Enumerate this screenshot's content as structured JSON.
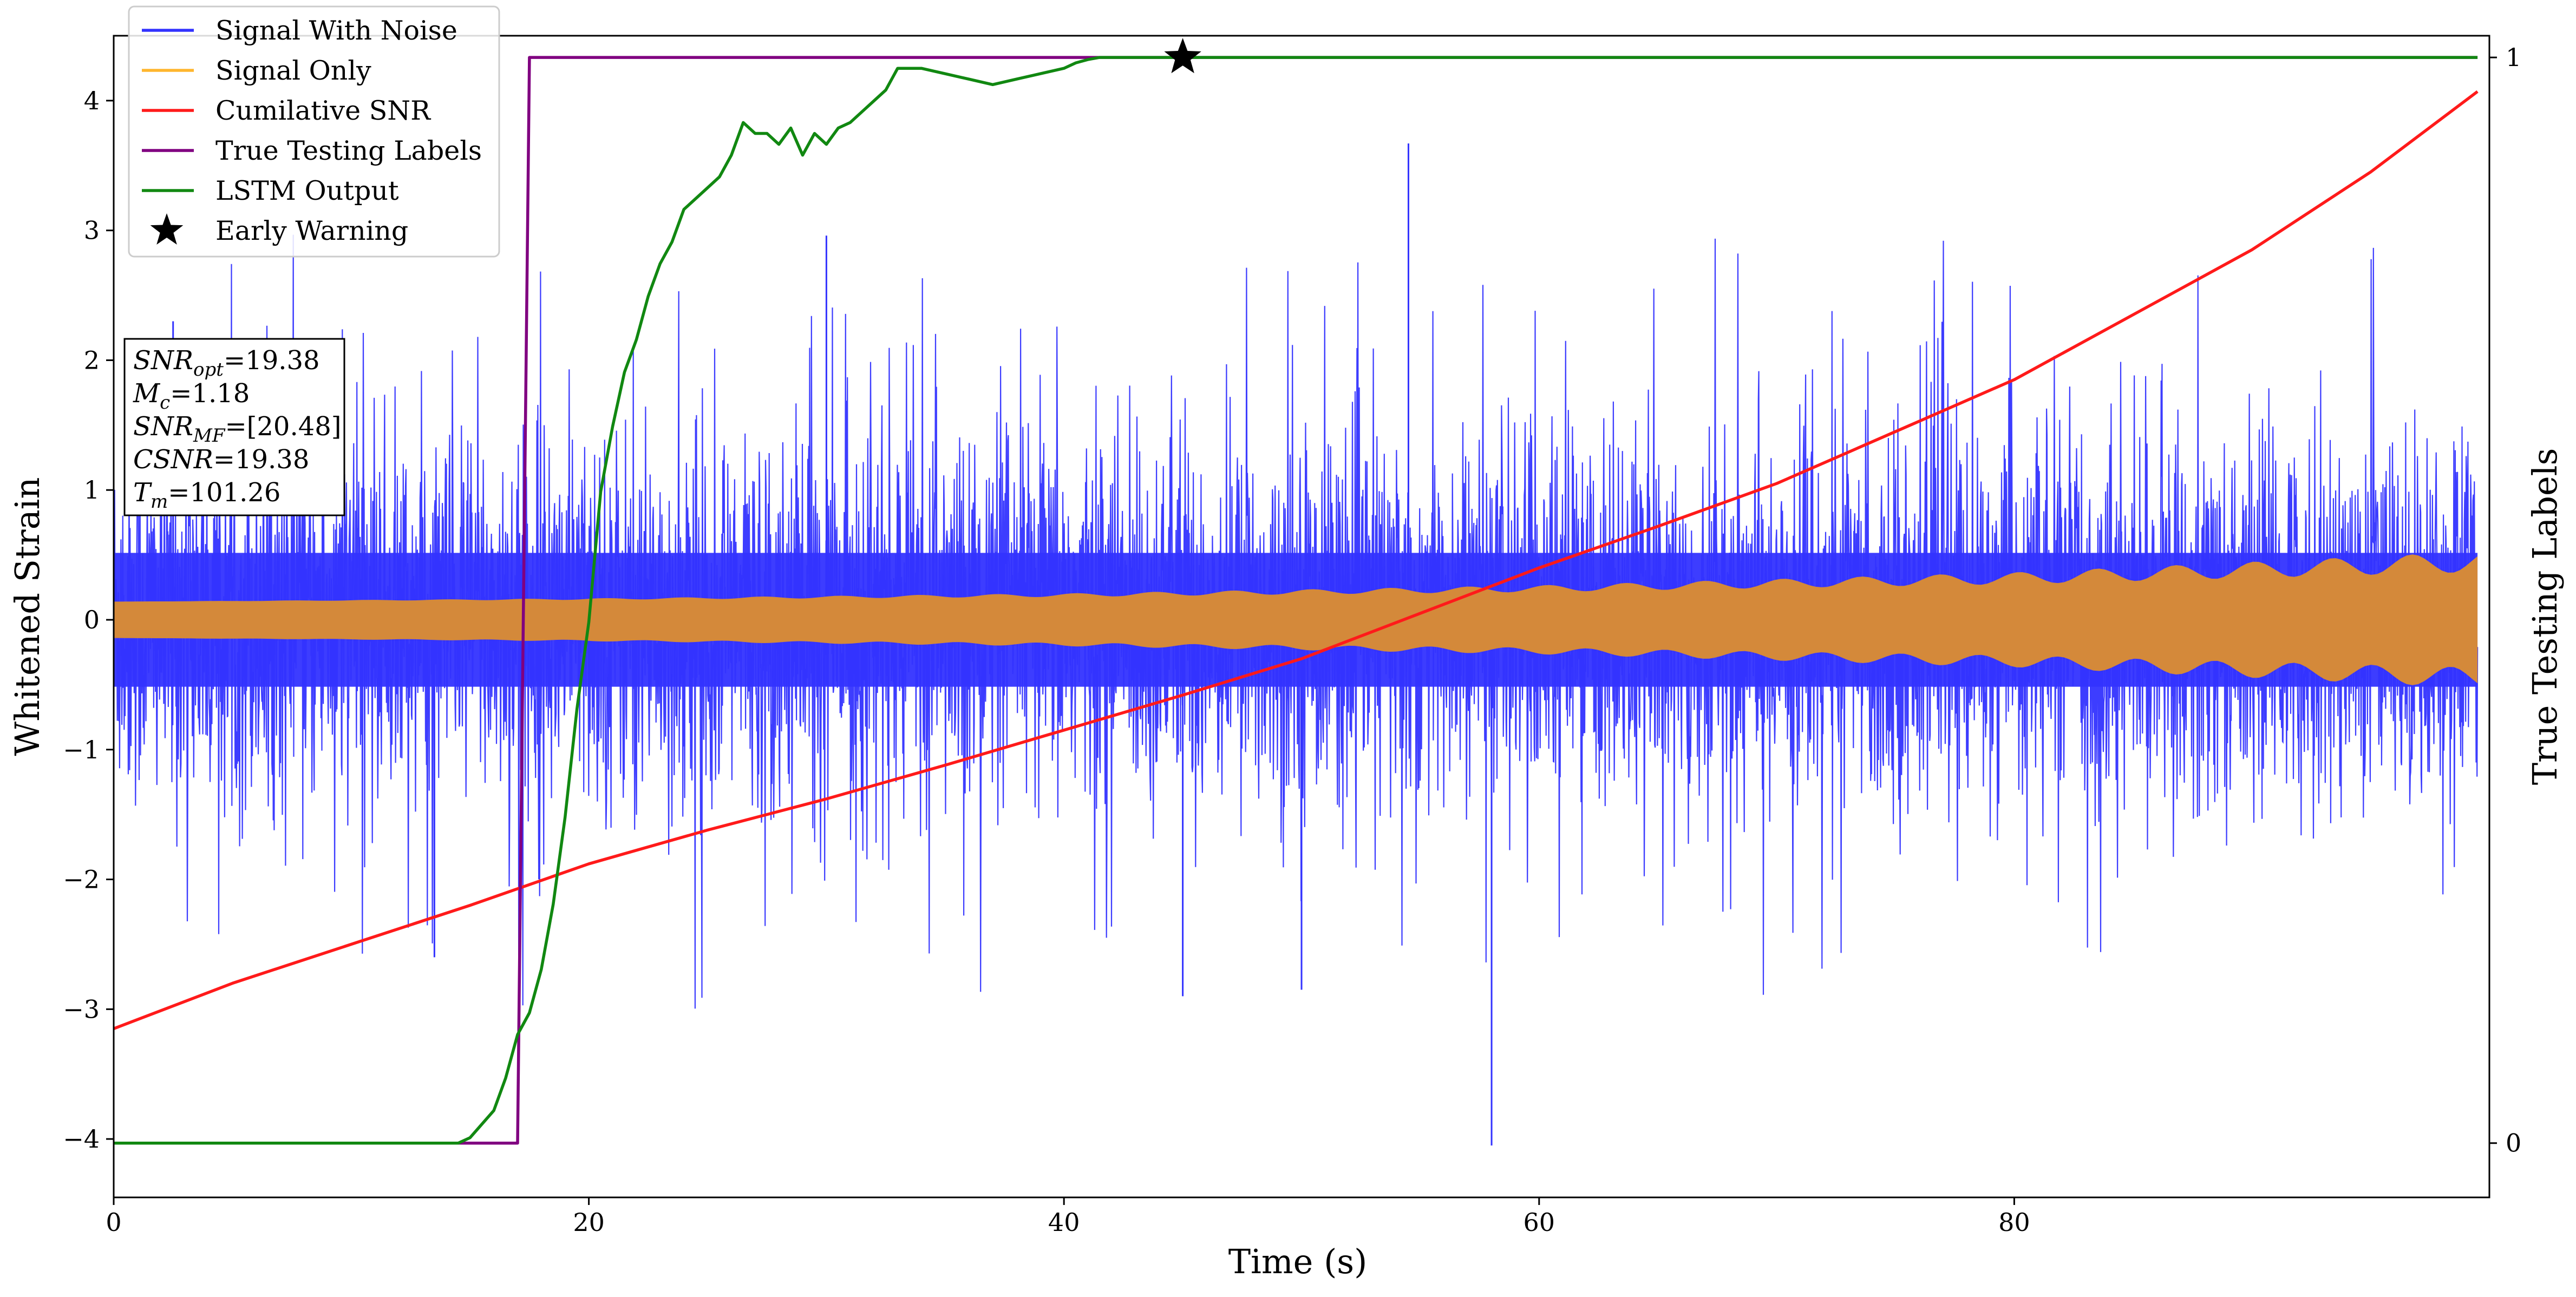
{
  "chart_data": {
    "type": "line",
    "xlabel": "Time (s)",
    "ylabel": "Whitened Strain",
    "y2label": "True Testing Labels",
    "xlim": [
      0,
      100
    ],
    "ylim": [
      -4.45,
      4.5
    ],
    "y2lim": [
      -0.05,
      1.02
    ],
    "xticks": [
      0,
      20,
      40,
      60,
      80
    ],
    "xtick_labels": [
      "0",
      "20",
      "40",
      "60",
      "80"
    ],
    "yticks": [
      4,
      3,
      2,
      1,
      0,
      -1,
      -2,
      -3,
      -4
    ],
    "ytick_labels": [
      "4",
      "3",
      "2",
      "1",
      "0",
      "−1",
      "−2",
      "−3",
      "−4"
    ],
    "y2ticks": [
      1,
      0
    ],
    "y2tick_labels": [
      "1",
      "0"
    ],
    "grid": false,
    "legend_position": "top-left",
    "legend": [
      {
        "label": "Signal With Noise",
        "color": "#3333ff",
        "marker": "line"
      },
      {
        "label": "Signal Only",
        "color": "#ffb62e",
        "marker": "line"
      },
      {
        "label": "Cumilative SNR",
        "color": "#ff1a1a",
        "marker": "line"
      },
      {
        "label": "True Testing Labels",
        "color": "#800080",
        "marker": "line"
      },
      {
        "label": "LSTM Output",
        "color": "#118811",
        "marker": "line"
      },
      {
        "label": "Early Warning",
        "color": "#000000",
        "marker": "star"
      }
    ],
    "info_box": [
      {
        "symbol": "SNR",
        "sub": "opt",
        "value": "=19.38"
      },
      {
        "symbol": "M",
        "sub": "c",
        "value": "=1.18"
      },
      {
        "symbol": "SNR",
        "sub": "MF",
        "value": "=[20.48]"
      },
      {
        "symbol": "CSNR",
        "sub": "",
        "value": "=19.38"
      },
      {
        "symbol": "T",
        "sub": "m",
        "value": "=101.26"
      }
    ],
    "series": [
      {
        "name": "Signal With Noise",
        "color": "#3333ff",
        "axis": "left",
        "noise_band_y": [
          -1.6,
          1.6
        ],
        "peak_range_y": [
          -4.05,
          3.67
        ],
        "description_values": {
          "max_point": [
            54.5,
            3.67
          ],
          "min_point": [
            58.0,
            -4.05
          ]
        }
      },
      {
        "name": "Signal Only",
        "color": "#d4893a",
        "axis": "left",
        "envelope_x": [
          0,
          20,
          40,
          60,
          80,
          100
        ],
        "envelope_upper": [
          0.14,
          0.16,
          0.19,
          0.24,
          0.32,
          0.45
        ],
        "envelope_lower": [
          -0.14,
          -0.16,
          -0.19,
          -0.24,
          -0.32,
          -0.45
        ]
      },
      {
        "name": "Cumilative SNR",
        "color": "#ff1a1a",
        "axis": "left",
        "x": [
          0,
          5,
          10,
          15,
          20,
          25,
          30,
          35,
          40,
          45,
          50,
          55,
          60,
          65,
          70,
          75,
          80,
          85,
          90,
          95,
          99.5
        ],
        "y": [
          -3.15,
          -2.8,
          -2.5,
          -2.2,
          -1.88,
          -1.62,
          -1.38,
          -1.12,
          -0.85,
          -0.58,
          -0.3,
          0.05,
          0.4,
          0.72,
          1.05,
          1.45,
          1.85,
          2.35,
          2.85,
          3.45,
          4.07
        ]
      },
      {
        "name": "True Testing Labels",
        "color": "#800080",
        "axis": "right",
        "x": [
          0,
          17.0,
          17.5,
          99.5
        ],
        "y": [
          0,
          0,
          1,
          1
        ]
      },
      {
        "name": "LSTM Output",
        "color": "#118811",
        "axis": "right",
        "x": [
          0,
          14.5,
          15.0,
          16.0,
          16.5,
          17.0,
          17.5,
          18.0,
          18.5,
          19.0,
          19.5,
          20.0,
          20.5,
          21.0,
          21.5,
          22.0,
          22.5,
          23.0,
          23.5,
          24.0,
          24.5,
          25.0,
          25.5,
          26.0,
          26.5,
          27.0,
          27.5,
          28.0,
          28.5,
          29.0,
          29.5,
          30.0,
          30.5,
          31.0,
          31.5,
          32.0,
          32.5,
          33.0,
          33.5,
          34.0,
          35.0,
          36.0,
          37.0,
          38.0,
          39.0,
          40.0,
          40.5,
          41.0,
          41.5,
          42.0,
          43.0,
          44.0,
          46.0,
          50.0,
          60.0,
          70.0,
          80.0,
          90.0,
          99.5
        ],
        "y": [
          0,
          0,
          0.005,
          0.03,
          0.06,
          0.1,
          0.12,
          0.16,
          0.22,
          0.3,
          0.4,
          0.48,
          0.6,
          0.66,
          0.71,
          0.74,
          0.78,
          0.81,
          0.83,
          0.86,
          0.87,
          0.88,
          0.89,
          0.91,
          0.94,
          0.93,
          0.93,
          0.92,
          0.935,
          0.91,
          0.93,
          0.92,
          0.935,
          0.94,
          0.95,
          0.96,
          0.97,
          0.99,
          0.99,
          0.99,
          0.985,
          0.98,
          0.975,
          0.98,
          0.985,
          0.99,
          0.995,
          0.998,
          1.0,
          1.0,
          1.0,
          1.0,
          1.0,
          1.0,
          1.0,
          1.0,
          1.0,
          1.0,
          1.0
        ]
      },
      {
        "name": "Early Warning",
        "color": "#000000",
        "axis": "right",
        "marker": "star",
        "x": [
          45.0
        ],
        "y": [
          1.0
        ]
      }
    ]
  }
}
